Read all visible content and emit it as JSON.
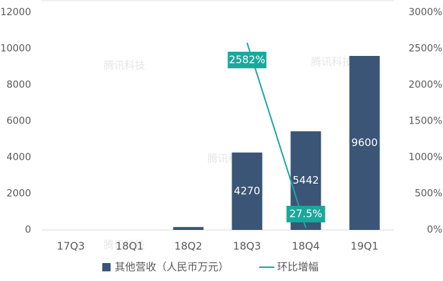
{
  "chart_data": {
    "type": "bar_line",
    "categories": [
      "17Q3",
      "18Q1",
      "18Q2",
      "18Q3",
      "18Q4",
      "19Q1"
    ],
    "series": [
      {
        "name": "其他营收（人民币万元）",
        "color": "#3a5575",
        "type": "bar",
        "values": [
          null,
          null,
          160,
          4270,
          5442,
          9600
        ]
      },
      {
        "name": "环比增幅",
        "color": "#1aa89c",
        "type": "line",
        "axis": "y2",
        "values": [
          null,
          null,
          null,
          2582,
          27.5,
          null
        ],
        "value_labels": [
          null,
          null,
          null,
          "2582%",
          "27.5%",
          null
        ]
      }
    ],
    "ylim": [
      0,
      12000
    ],
    "yticks": [
      0,
      2000,
      4000,
      6000,
      8000,
      10000,
      12000
    ],
    "y2lim": [
      0,
      3000
    ],
    "y2ticks": [
      {
        "value": 0,
        "label": "0%"
      },
      {
        "value": 500,
        "label": "500%"
      },
      {
        "value": 1000,
        "label": "1000%"
      },
      {
        "value": 1500,
        "label": "1500%"
      },
      {
        "value": 2000,
        "label": "2000%"
      },
      {
        "value": 2500,
        "label": "2500%"
      },
      {
        "value": 3000,
        "label": "3000%"
      }
    ],
    "grid": false,
    "legend": "bottom",
    "watermark": "腾讯科技"
  }
}
